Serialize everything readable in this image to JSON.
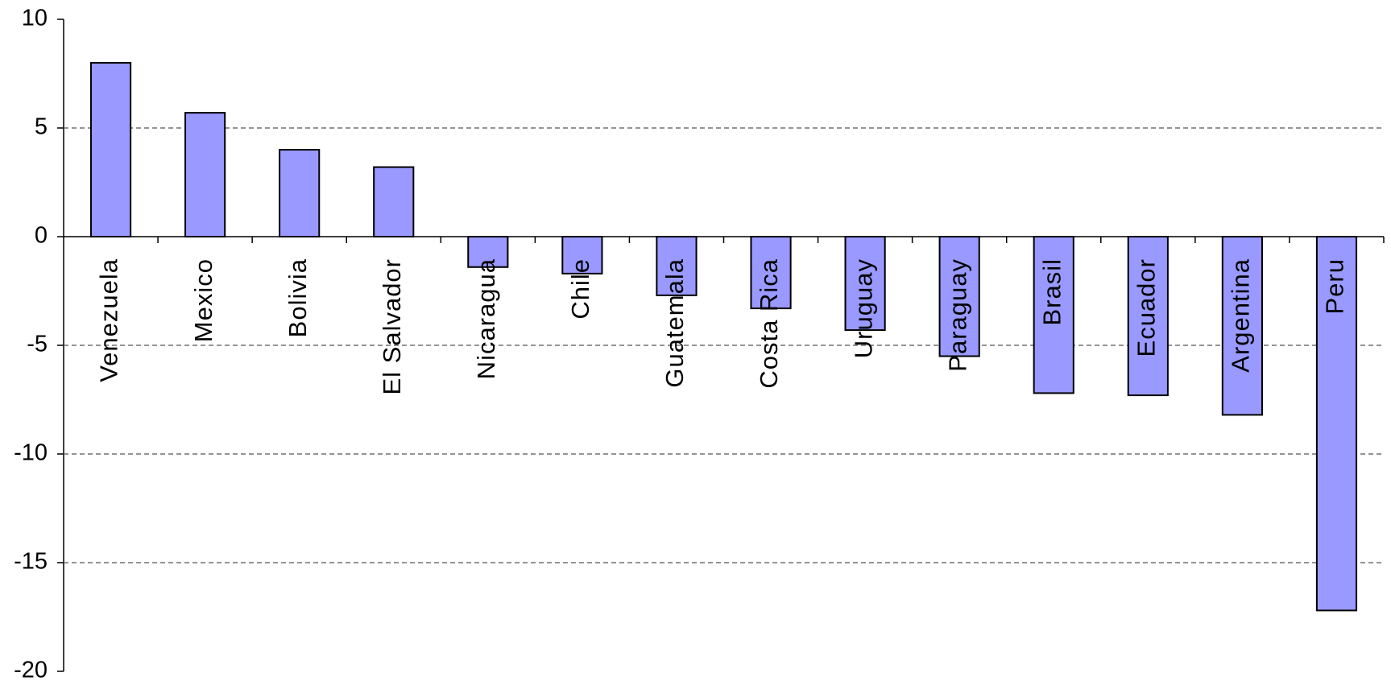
{
  "chart_data": {
    "type": "bar",
    "categories": [
      "Venezuela",
      "Mexico",
      "Bolivia",
      "El Salvador",
      "Nicaragua",
      "Chile",
      "Guatemala",
      "Costa Rica",
      "Uruguay",
      "Paraguay",
      "Brasil",
      "Ecuador",
      "Argentina",
      "Peru"
    ],
    "values": [
      8.0,
      5.7,
      4.0,
      3.2,
      -1.4,
      -1.7,
      -2.7,
      -3.3,
      -4.3,
      -5.5,
      -7.2,
      -7.3,
      -8.2,
      -17.2
    ],
    "color": "#9999ff",
    "ylim": [
      -20,
      10
    ],
    "yticks": [
      10,
      5,
      0,
      -5,
      -10,
      -15,
      -20
    ],
    "grid": true
  }
}
